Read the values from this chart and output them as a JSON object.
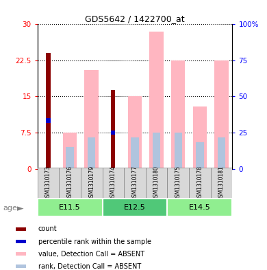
{
  "title": "GDS5642 / 1422700_at",
  "samples": [
    "GSM1310173",
    "GSM1310176",
    "GSM1310179",
    "GSM1310174",
    "GSM1310177",
    "GSM1310180",
    "GSM1310175",
    "GSM1310178",
    "GSM1310181"
  ],
  "count_values": [
    24.0,
    0,
    0,
    16.3,
    0,
    0,
    0,
    0,
    0
  ],
  "percentile_rank_values": [
    10.0,
    0,
    0,
    7.5,
    0,
    0,
    0,
    0,
    0
  ],
  "pink_bar_values": [
    0,
    7.5,
    20.5,
    0,
    15.0,
    28.5,
    22.5,
    13.0,
    22.5
  ],
  "light_blue_bar_values": [
    0,
    4.5,
    6.5,
    0,
    6.5,
    7.5,
    7.5,
    5.5,
    6.5
  ],
  "age_groups": [
    {
      "label": "E11.5",
      "start": 0,
      "end": 3,
      "color": "#90EE90"
    },
    {
      "label": "E12.5",
      "start": 3,
      "end": 6,
      "color": "#50C878"
    },
    {
      "label": "E14.5",
      "start": 6,
      "end": 9,
      "color": "#90EE90"
    }
  ],
  "ylim_left": [
    0,
    30
  ],
  "ylim_right": [
    0,
    100
  ],
  "yticks_left": [
    0,
    7.5,
    15,
    22.5,
    30
  ],
  "ytick_labels_left": [
    "0",
    "7.5",
    "15",
    "22.5",
    "30"
  ],
  "yticks_right": [
    0,
    25,
    50,
    75,
    100
  ],
  "ytick_labels_right": [
    "0",
    "25",
    "50",
    "75",
    "100%"
  ],
  "count_color": "#8B0000",
  "percentile_color": "#0000CD",
  "pink_color": "#FFB6C1",
  "light_blue_color": "#B0C4DE",
  "age_label": "age",
  "legend_items": [
    {
      "label": "count",
      "color": "#8B0000"
    },
    {
      "label": "percentile rank within the sample",
      "color": "#0000CD"
    },
    {
      "label": "value, Detection Call = ABSENT",
      "color": "#FFB6C1"
    },
    {
      "label": "rank, Detection Call = ABSENT",
      "color": "#B0C4DE"
    }
  ]
}
